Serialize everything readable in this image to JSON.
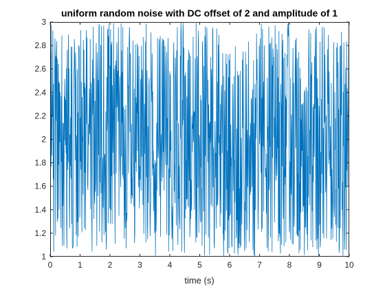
{
  "chart_data": {
    "type": "line",
    "title": "uniform random noise with DC offset of 2 and amplitude of 1",
    "xlabel": "time (s)",
    "ylabel": "",
    "xlim": [
      0,
      10
    ],
    "ylim": [
      1,
      3
    ],
    "x_ticks": [
      "0",
      "1",
      "2",
      "3",
      "4",
      "5",
      "6",
      "7",
      "8",
      "9",
      "10"
    ],
    "y_ticks": [
      "1",
      "1.2",
      "1.4",
      "1.6",
      "1.8",
      "2",
      "2.2",
      "2.4",
      "2.6",
      "2.8",
      "3"
    ],
    "grid": false,
    "legend": "none",
    "line_color": "#0072BD",
    "series": [
      {
        "x_start": 0,
        "x_end": 10,
        "sample_count": 1000,
        "distribution": "uniform",
        "y_min": 1,
        "y_max": 3
      }
    ]
  }
}
